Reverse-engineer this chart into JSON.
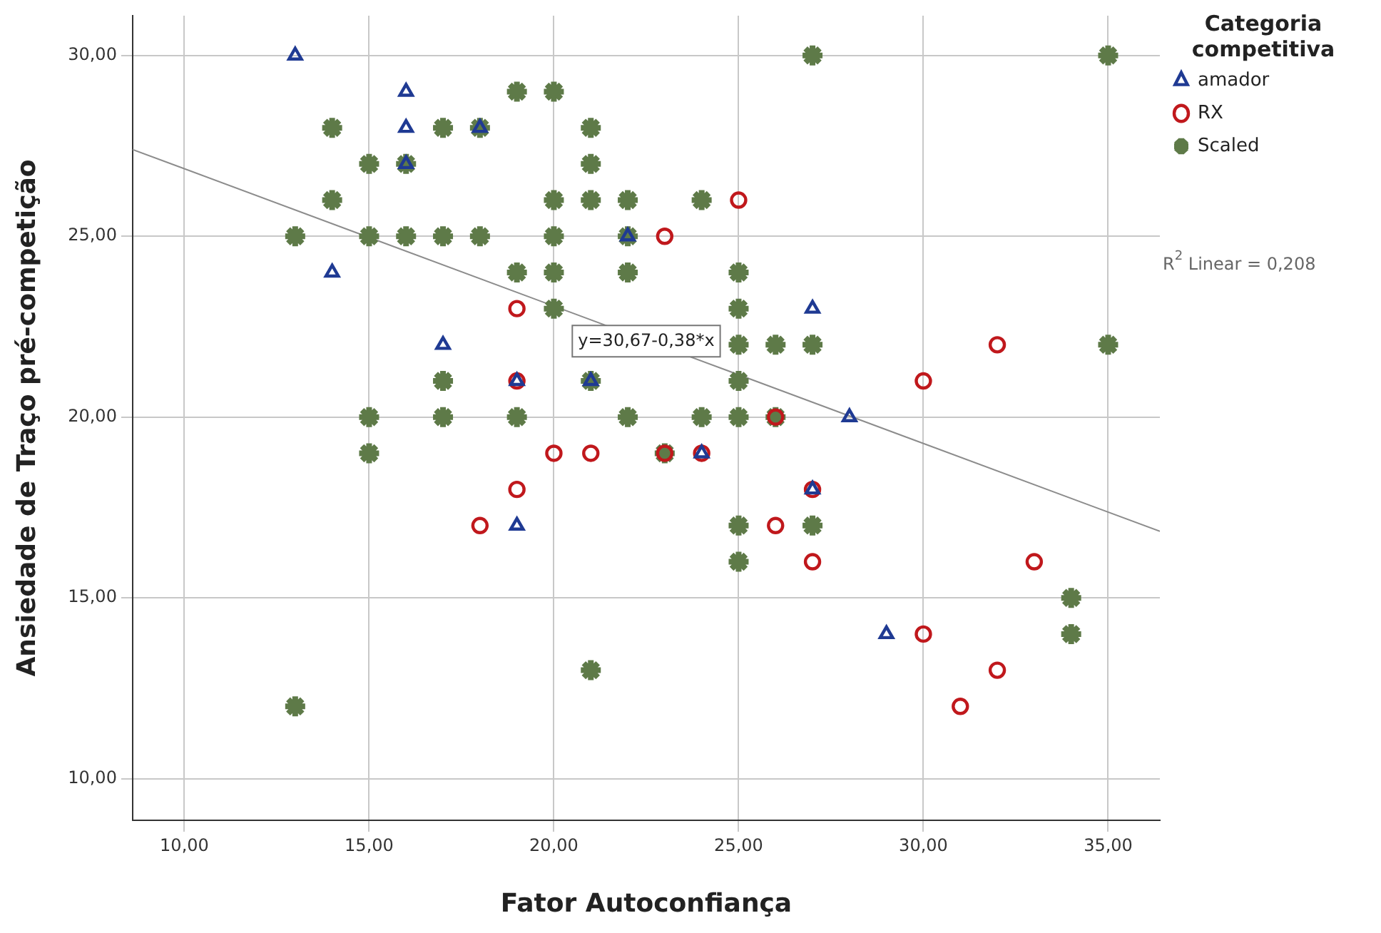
{
  "chart_data": {
    "type": "scatter",
    "xlabel": "Fator Autoconfiança",
    "ylabel": "Ansiedade de Traço pré-competição",
    "legend_title": "Categoria competitiva",
    "legend": "top right",
    "grid": true,
    "xlim": [
      8.6,
      36.4
    ],
    "ylim": [
      8.85,
      31.1
    ],
    "xticks": [
      {
        "value": 10,
        "label": "10,00"
      },
      {
        "value": 15,
        "label": "15,00"
      },
      {
        "value": 20,
        "label": "20,00"
      },
      {
        "value": 25,
        "label": "25,00"
      },
      {
        "value": 30,
        "label": "30,00"
      },
      {
        "value": 35,
        "label": "35,00"
      }
    ],
    "yticks": [
      {
        "value": 10,
        "label": "10,00"
      },
      {
        "value": 15,
        "label": "15,00"
      },
      {
        "value": 20,
        "label": "20,00"
      },
      {
        "value": 25,
        "label": "25,00"
      },
      {
        "value": 30,
        "label": "30,00"
      }
    ],
    "series": [
      {
        "name": "amador",
        "color": "#1f3a93",
        "marker": "triangle",
        "x": [
          13,
          16,
          16,
          16,
          14,
          17,
          18,
          19,
          19,
          21,
          22,
          24,
          27,
          27,
          28,
          29
        ],
        "values": [
          30,
          29,
          28,
          27,
          24,
          22,
          28,
          21,
          17,
          21,
          25,
          19,
          23,
          18,
          20,
          14
        ]
      },
      {
        "name": "RX",
        "color": "#c0181c",
        "marker": "circle",
        "x": [
          23,
          25,
          19,
          19,
          19,
          18,
          20,
          21,
          23,
          24,
          26,
          26,
          27,
          27,
          30,
          32,
          30,
          32,
          31,
          33
        ],
        "values": [
          25,
          26,
          23,
          21,
          18,
          17,
          19,
          19,
          19,
          19,
          20,
          17,
          18,
          16,
          21,
          22,
          14,
          13,
          12,
          16
        ]
      },
      {
        "name": "Scaled",
        "color": "#5e7a48",
        "marker": "cross",
        "x": [
          13,
          13,
          14,
          14,
          15,
          15,
          15,
          15,
          16,
          16,
          17,
          17,
          17,
          17,
          18,
          18,
          19,
          19,
          19,
          20,
          20,
          20,
          20,
          20,
          21,
          21,
          21,
          21,
          21,
          22,
          22,
          22,
          22,
          23,
          24,
          24,
          25,
          25,
          25,
          25,
          25,
          25,
          25,
          26,
          26,
          27,
          27,
          27,
          34,
          34,
          35,
          35
        ],
        "values": [
          25,
          12,
          28,
          26,
          27,
          25,
          20,
          19,
          27,
          25,
          28,
          25,
          21,
          20,
          28,
          25,
          29,
          24,
          20,
          29,
          26,
          25,
          24,
          23,
          28,
          27,
          26,
          21,
          13,
          26,
          25,
          24,
          20,
          19,
          26,
          20,
          24,
          23,
          22,
          21,
          20,
          17,
          16,
          22,
          20,
          30,
          22,
          17,
          15,
          14,
          30,
          22
        ]
      },
      {
        "type": "line",
        "color": "#8c8c8c",
        "marker": "none",
        "x": [
          8.6,
          36.4
        ],
        "values": [
          27.4,
          16.84
        ]
      }
    ],
    "annotations": [
      {
        "text": "y=30,67-0,38*x",
        "x": 22.5,
        "y": 22.1
      },
      "R$^{2}$ Linear = 0,208"
    ]
  }
}
